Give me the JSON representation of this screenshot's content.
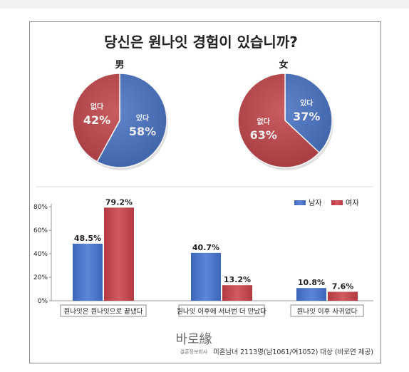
{
  "title": "당신은 원나잇 경험이 있습니까?",
  "colors": {
    "male": "#4a74c4",
    "female": "#c0464b",
    "text": "#222222",
    "grid": "#cccccc"
  },
  "chart_data": [
    {
      "type": "pie",
      "title": "男",
      "slices": [
        {
          "label": "있다",
          "value": 58,
          "display": "58%",
          "color": "#4a74c4"
        },
        {
          "label": "없다",
          "value": 42,
          "display": "42%",
          "color": "#c0464b"
        }
      ]
    },
    {
      "type": "pie",
      "title": "女",
      "slices": [
        {
          "label": "있다",
          "value": 37,
          "display": "37%",
          "color": "#4a74c4"
        },
        {
          "label": "없다",
          "value": 63,
          "display": "63%",
          "color": "#c0464b"
        }
      ]
    },
    {
      "type": "bar",
      "categories": [
        "원나잇은 원나잇으로 끝냈다",
        "원나잇 이후에 서너번 더 만났다",
        "원나잇 이후 사귀었다"
      ],
      "series": [
        {
          "name": "남자",
          "values": [
            48.5,
            40.7,
            10.8
          ],
          "labels": [
            "48.5%",
            "40.7%",
            "10.8%"
          ],
          "color": "#4a74c4"
        },
        {
          "name": "여자",
          "values": [
            79.2,
            13.2,
            7.6
          ],
          "labels": [
            "79.2%",
            "13.2%",
            "7.6%"
          ],
          "color": "#c0464b"
        }
      ],
      "ylim": [
        0,
        80
      ],
      "yticks": [
        "0%",
        "20%",
        "40%",
        "60%",
        "80%"
      ],
      "legend": "top-right"
    }
  ],
  "footer": {
    "logo_text": "바로緣",
    "logo_sub": "결혼정보회사",
    "note": "미혼남녀 2113명(남1061/여1052) 대상 (바로연 제공)"
  }
}
